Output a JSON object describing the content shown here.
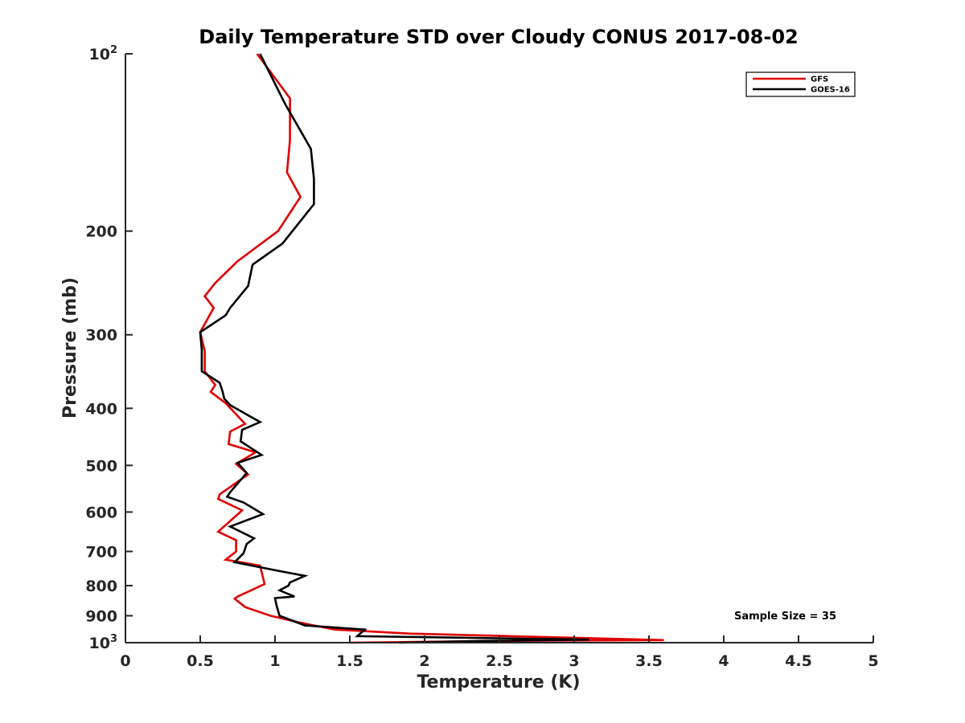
{
  "chart_data": {
    "type": "line",
    "title": "Daily Temperature STD over Cloudy CONUS 2017-08-02",
    "xlabel": "Temperature (K)",
    "ylabel": "Pressure (mb)",
    "xlim": [
      0,
      5
    ],
    "ylim": [
      100,
      1000
    ],
    "yscale": "log",
    "y_reversed": true,
    "grid": false,
    "legend_position": "top-right",
    "x_ticks": [
      "0",
      "0.5",
      "1",
      "1.5",
      "2",
      "2.5",
      "3",
      "3.5",
      "4",
      "4.5",
      "5"
    ],
    "y_ticks": [
      {
        "value": 100,
        "base": "10",
        "exp": "2"
      },
      {
        "value": 200,
        "label": "200"
      },
      {
        "value": 300,
        "label": "300"
      },
      {
        "value": 400,
        "label": "400"
      },
      {
        "value": 500,
        "label": "500"
      },
      {
        "value": 600,
        "label": "600"
      },
      {
        "value": 700,
        "label": "700"
      },
      {
        "value": 800,
        "label": "800"
      },
      {
        "value": 900,
        "label": "900"
      },
      {
        "value": 1000,
        "base": "10",
        "exp": "3"
      }
    ],
    "annotation": "Sample Size = 35",
    "series": [
      {
        "name": "GFS",
        "color": "#e00000",
        "points": [
          [
            0.88,
            100
          ],
          [
            1.1,
            119
          ],
          [
            1.1,
            140
          ],
          [
            1.08,
            159
          ],
          [
            1.17,
            175
          ],
          [
            1.02,
            200
          ],
          [
            0.75,
            225
          ],
          [
            0.6,
            245
          ],
          [
            0.53,
            258
          ],
          [
            0.59,
            270
          ],
          [
            0.5,
            297
          ],
          [
            0.53,
            320
          ],
          [
            0.53,
            346
          ],
          [
            0.6,
            365
          ],
          [
            0.57,
            375
          ],
          [
            0.67,
            392
          ],
          [
            0.8,
            425
          ],
          [
            0.7,
            438
          ],
          [
            0.69,
            460
          ],
          [
            0.87,
            475
          ],
          [
            0.74,
            497
          ],
          [
            0.82,
            518
          ],
          [
            0.63,
            560
          ],
          [
            0.62,
            570
          ],
          [
            0.78,
            596
          ],
          [
            0.62,
            648
          ],
          [
            0.74,
            670
          ],
          [
            0.74,
            700
          ],
          [
            0.67,
            723
          ],
          [
            0.9,
            740
          ],
          [
            0.93,
            795
          ],
          [
            0.75,
            835
          ],
          [
            0.73,
            842
          ],
          [
            0.8,
            870
          ],
          [
            0.97,
            900
          ],
          [
            1.17,
            925
          ],
          [
            1.4,
            950
          ],
          [
            1.9,
            965
          ],
          [
            3.6,
            990
          ],
          [
            2.5,
            993
          ],
          [
            1.5,
            1000
          ]
        ]
      },
      {
        "name": "GOES-16",
        "color": "#000000",
        "points": [
          [
            0.9,
            100
          ],
          [
            1.07,
            122
          ],
          [
            1.24,
            145
          ],
          [
            1.26,
            163
          ],
          [
            1.26,
            180
          ],
          [
            1.05,
            210
          ],
          [
            0.85,
            228
          ],
          [
            0.82,
            248
          ],
          [
            0.7,
            270
          ],
          [
            0.67,
            278
          ],
          [
            0.5,
            297
          ],
          [
            0.51,
            318
          ],
          [
            0.51,
            346
          ],
          [
            0.63,
            362
          ],
          [
            0.65,
            375
          ],
          [
            0.66,
            385
          ],
          [
            0.7,
            395
          ],
          [
            0.9,
            422
          ],
          [
            0.78,
            435
          ],
          [
            0.77,
            455
          ],
          [
            0.91,
            480
          ],
          [
            0.75,
            495
          ],
          [
            0.81,
            515
          ],
          [
            0.7,
            555
          ],
          [
            0.68,
            565
          ],
          [
            0.79,
            578
          ],
          [
            0.92,
            605
          ],
          [
            0.7,
            635
          ],
          [
            0.86,
            665
          ],
          [
            0.81,
            680
          ],
          [
            0.79,
            705
          ],
          [
            0.73,
            730
          ],
          [
            1.02,
            755
          ],
          [
            1.2,
            770
          ],
          [
            1.1,
            790
          ],
          [
            1.09,
            800
          ],
          [
            1.03,
            815
          ],
          [
            1.13,
            835
          ],
          [
            1.0,
            840
          ],
          [
            1.01,
            865
          ],
          [
            1.03,
            900
          ],
          [
            1.2,
            935
          ],
          [
            1.6,
            950
          ],
          [
            1.55,
            975
          ],
          [
            3.1,
            988
          ],
          [
            2.4,
            993
          ],
          [
            1.83,
            1000
          ]
        ]
      }
    ]
  }
}
